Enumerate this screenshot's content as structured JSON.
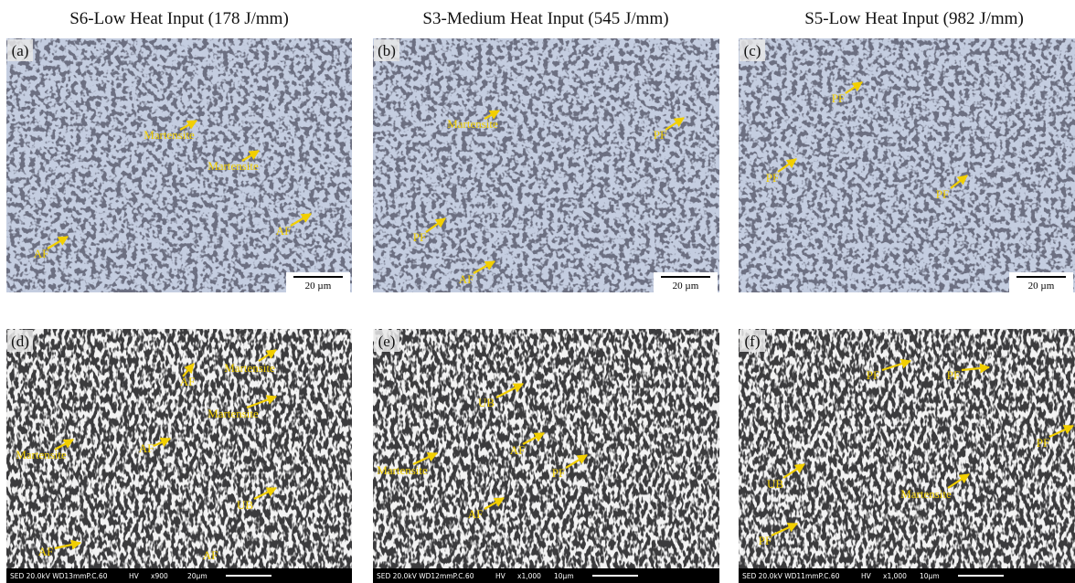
{
  "columns": [
    {
      "title": "S6-Low Heat Input (178 J/mm)"
    },
    {
      "title": "S3-Medium Heat Input (545 J/mm)"
    },
    {
      "title": "S5-Low Heat Input (982 J/mm)"
    }
  ],
  "panels": [
    {
      "label": "(a)",
      "annotations": [
        "Martensite",
        "Martensite",
        "AF",
        "AF"
      ],
      "scale_bar": "20 µm"
    },
    {
      "label": "(b)",
      "annotations": [
        "Martensite",
        "PF",
        "PF",
        "AF"
      ],
      "scale_bar": "20 µm"
    },
    {
      "label": "(c)",
      "annotations": [
        "PF",
        "PF",
        "PF"
      ],
      "scale_bar": "20 µm"
    },
    {
      "label": "(d)",
      "annotations": [
        "AF",
        "Martensite",
        "Martensite",
        "Martensite",
        "AF",
        "UB",
        "AF",
        "AF"
      ],
      "info": {
        "settings": "SED 20.0kV WD13mmP.C.60",
        "hv": "HV",
        "magnification": "x900",
        "scale": "20µm"
      }
    },
    {
      "label": "(e)",
      "annotations": [
        "UB",
        "AF",
        "Martensite",
        "PF",
        "AF"
      ],
      "info": {
        "settings": "SED 20.0kV WD12mmP.C.60",
        "hv": "HV",
        "magnification": "x1,000",
        "scale": "10µm"
      }
    },
    {
      "label": "(f)",
      "annotations": [
        "PF",
        "PF",
        "PF",
        "UB",
        "Martensite",
        "PF"
      ],
      "info": {
        "settings": "SED 20.0kV WD11mmP.C.60",
        "hv": "HV",
        "magnification": "x1,000",
        "scale": "10µm"
      }
    }
  ]
}
